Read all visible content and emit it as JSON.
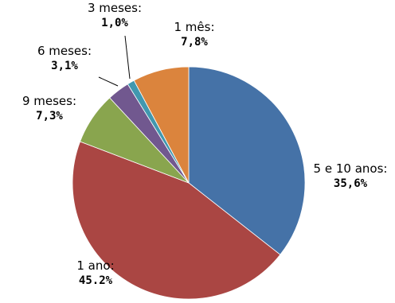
{
  "chart_data": {
    "type": "pie",
    "slices": [
      {
        "name": "5 e 10 anos:",
        "value": 35.6,
        "label": "35,6%",
        "color": "#4572A7"
      },
      {
        "name": "1 ano:",
        "value": 45.2,
        "label": "45.2%",
        "color": "#AA4643"
      },
      {
        "name": "9 meses:",
        "value": 7.3,
        "label": "7,3%",
        "color": "#89A54E"
      },
      {
        "name": "6 meses:",
        "value": 3.1,
        "label": "3,1%",
        "color": "#71588F"
      },
      {
        "name": "3 meses:",
        "value": 1.0,
        "label": "1,0%",
        "color": "#4198AF"
      },
      {
        "name": "1 mês:",
        "value": 7.8,
        "label": "7,8%",
        "color": "#DB843D"
      }
    ],
    "start_angle_deg": 0,
    "direction": "clockwise",
    "legend": "none"
  }
}
